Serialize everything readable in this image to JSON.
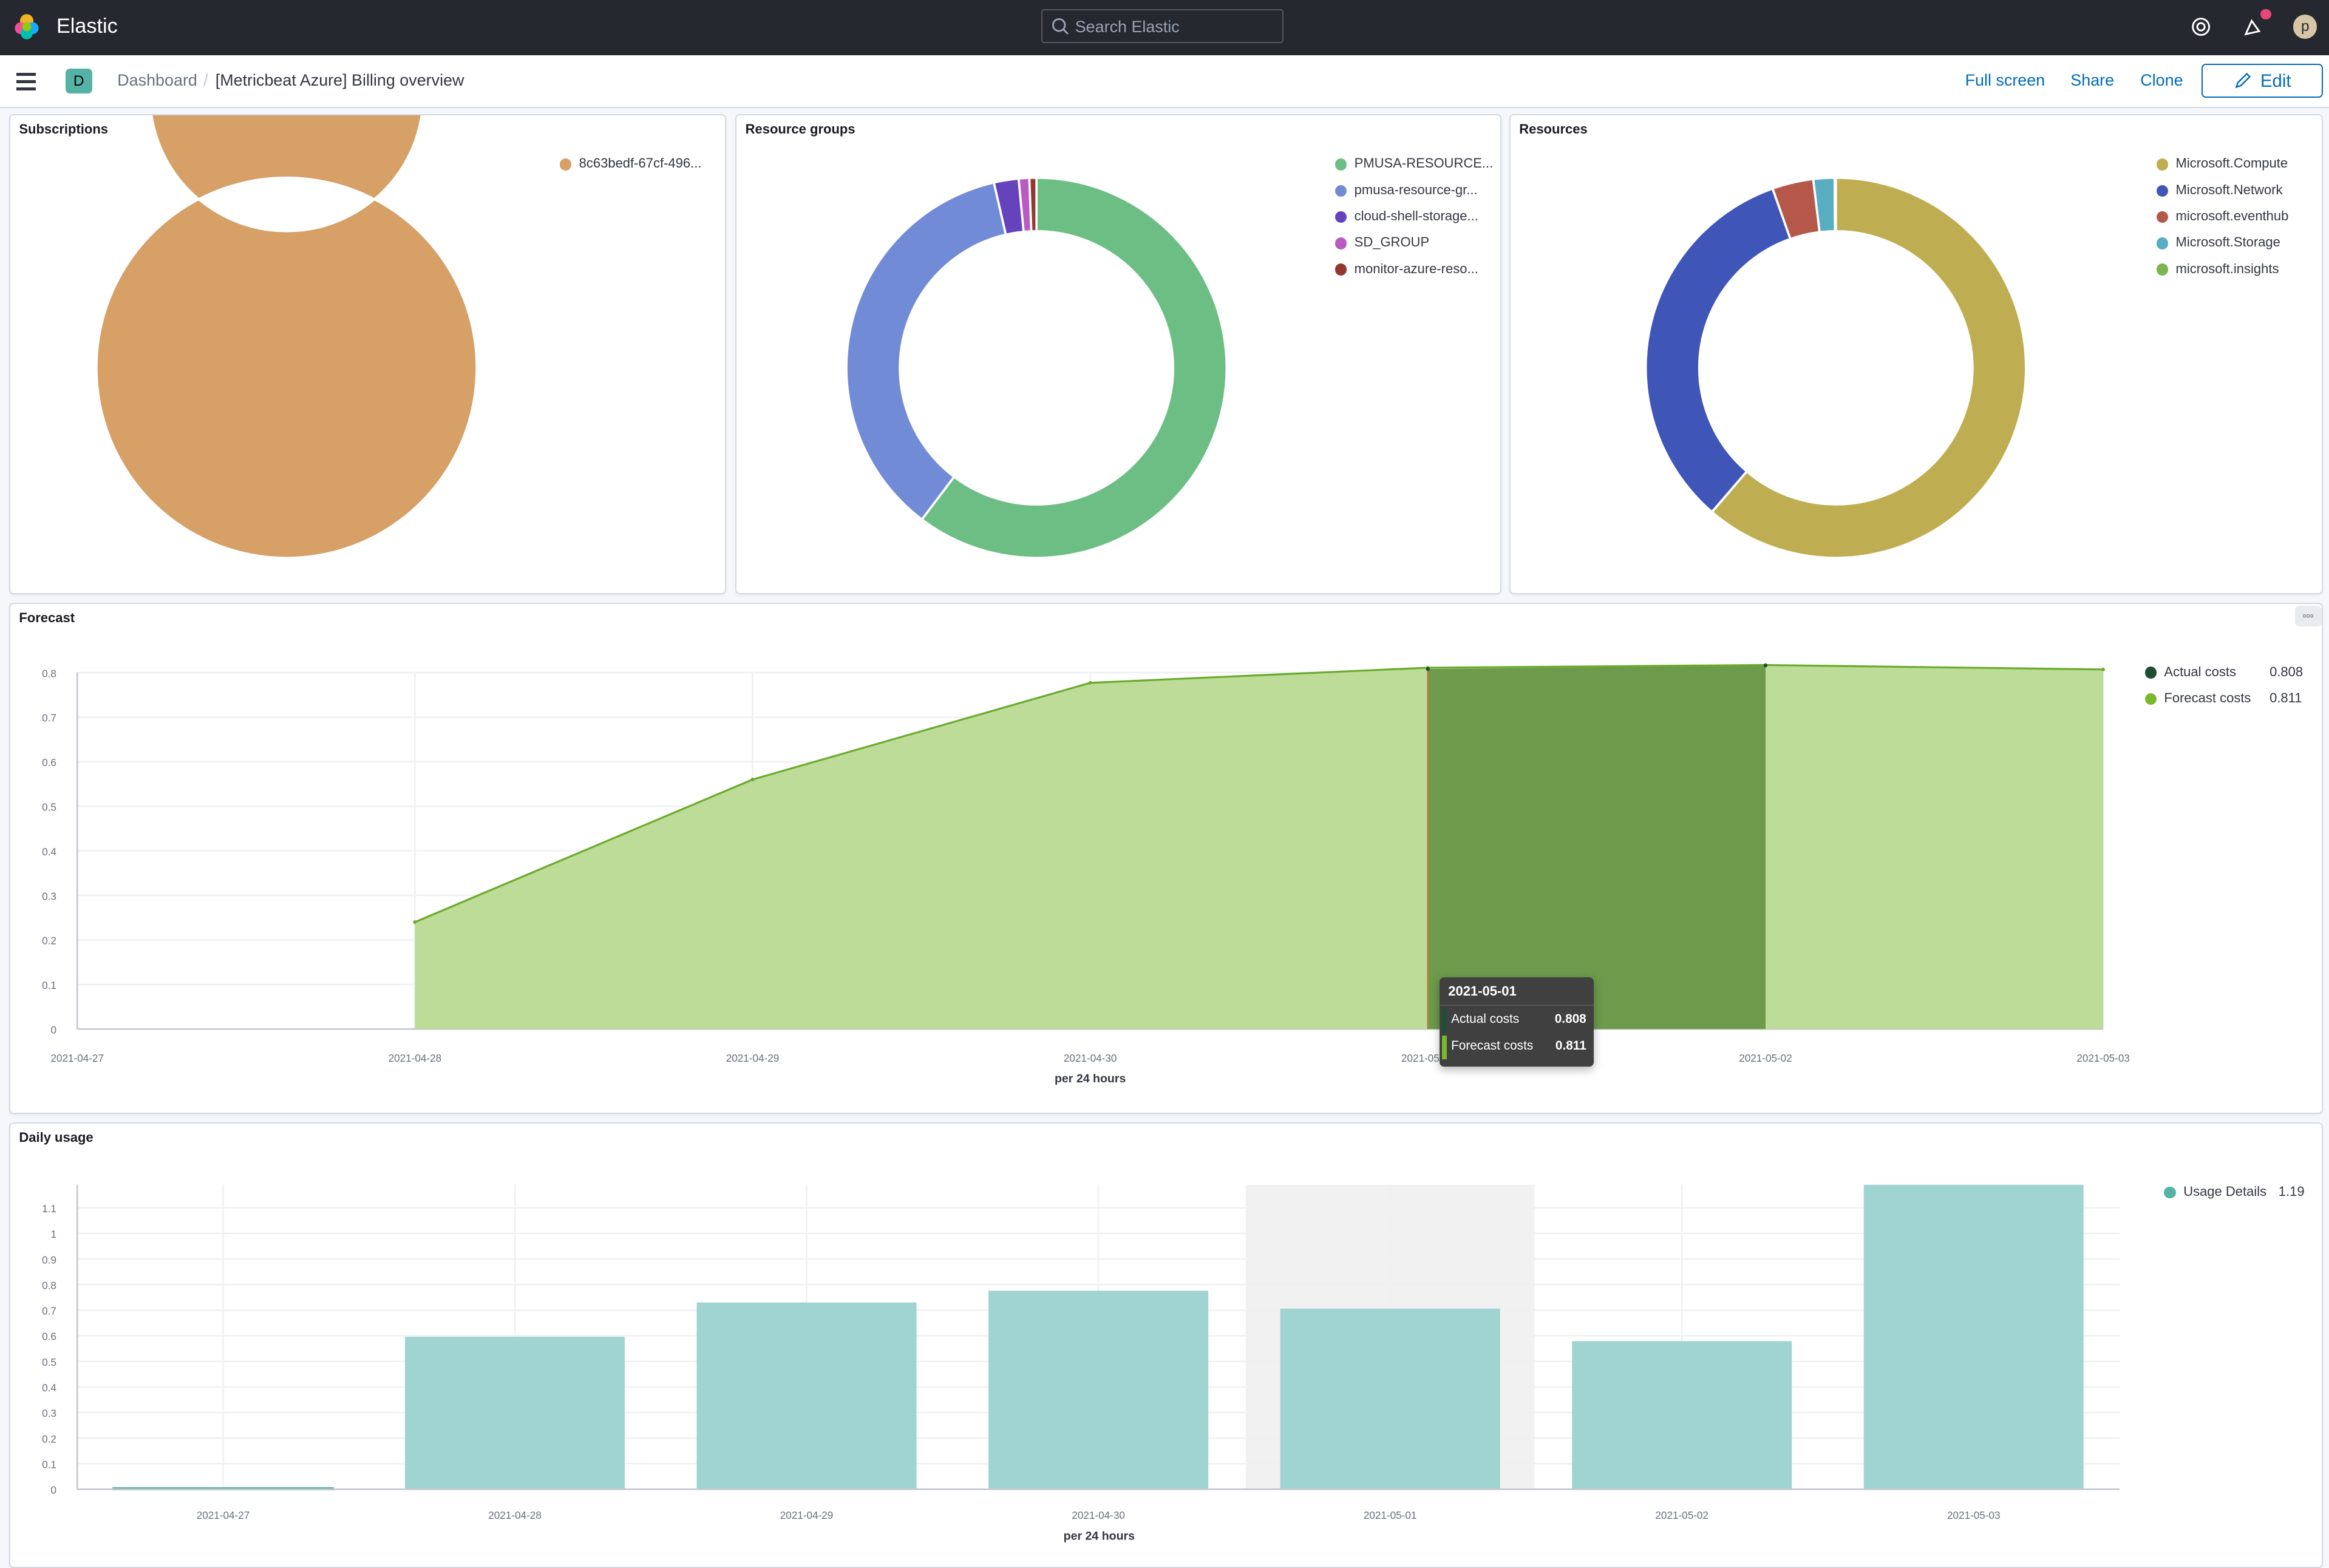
{
  "header": {
    "brand": "Elastic",
    "search_placeholder": "Search Elastic",
    "avatar_initial": "p"
  },
  "subheader": {
    "space_badge": "D",
    "breadcrumbs": [
      "Dashboard",
      "[Metricbeat Azure] Billing overview"
    ],
    "actions": {
      "full_screen": "Full screen",
      "share": "Share",
      "clone": "Clone",
      "edit": "Edit"
    }
  },
  "panels": {
    "subscriptions": {
      "title": "Subscriptions",
      "slices": [
        {
          "label": "8c63bedf-67cf-496...",
          "percent": 100,
          "color": "#d6a067"
        }
      ]
    },
    "resource_groups": {
      "title": "Resource groups",
      "slices": [
        {
          "label": "PMUSA-RESOURCE...",
          "percent": 60.3,
          "color": "#6dbe84"
        },
        {
          "label": "pmusa-resource-gr...",
          "percent": 36.1,
          "color": "#728bd6"
        },
        {
          "label": "cloud-shell-storage...",
          "percent": 2.1,
          "color": "#6443bd"
        },
        {
          "label": "SD_GROUP",
          "percent": 0.9,
          "color": "#b85cc2"
        },
        {
          "label": "monitor-azure-reso...",
          "percent": 0.6,
          "color": "#95372f"
        }
      ]
    },
    "resources": {
      "title": "Resources",
      "slices": [
        {
          "label": "Microsoft.Compute",
          "percent": 61.3,
          "color": "#bfae51"
        },
        {
          "label": "Microsoft.Network",
          "percent": 33.3,
          "color": "#3f56b8"
        },
        {
          "label": "microsoft.eventhub",
          "percent": 3.5,
          "color": "#b65849"
        },
        {
          "label": "Microsoft.Storage",
          "percent": 1.8,
          "color": "#59adc0"
        },
        {
          "label": "microsoft.insights",
          "percent": 0.1,
          "color": "#7ab54e"
        }
      ]
    },
    "forecast": {
      "title": "Forecast",
      "options_label": "▫▫▫"
    },
    "daily_usage": {
      "title": "Daily usage"
    }
  },
  "chart_data": [
    {
      "type": "area",
      "xlabel": "per 24 hours",
      "x": [
        "2021-04-27",
        "2021-04-28",
        "2021-04-29",
        "2021-04-30",
        "2021-05-01",
        "2021-05-02",
        "2021-05-03"
      ],
      "ylim": [
        0,
        0.8
      ],
      "yticks": [
        "0",
        "0.1",
        "0.2",
        "0.3",
        "0.4",
        "0.5",
        "0.6",
        "0.7",
        "0.8"
      ],
      "grid": true,
      "legend_position": "right",
      "series": [
        {
          "name": "Actual costs",
          "legend_value": "0.808",
          "color": "#1f4e35",
          "values": [
            null,
            null,
            null,
            null,
            0.808,
            0.816,
            null
          ]
        },
        {
          "name": "Forecast costs",
          "legend_value": "0.811",
          "color": "#7ab82e",
          "values": [
            null,
            0.24,
            0.56,
            0.777,
            0.811,
            0.817,
            0.807
          ]
        }
      ],
      "highlight_range": [
        "2021-05-01",
        "2021-05-02"
      ],
      "tooltip": {
        "title": "2021-05-01",
        "rows": [
          {
            "label": "Actual costs",
            "value": "0.808"
          },
          {
            "label": "Forecast costs",
            "value": "0.811"
          }
        ]
      }
    },
    {
      "type": "bar",
      "xlabel": "per 24 hours",
      "categories": [
        "2021-04-27",
        "2021-04-28",
        "2021-04-29",
        "2021-04-30",
        "2021-05-01",
        "2021-05-02",
        "2021-05-03"
      ],
      "ylim": [
        0,
        1.19
      ],
      "yticks": [
        "0",
        "0.1",
        "0.2",
        "0.3",
        "0.4",
        "0.5",
        "0.6",
        "0.7",
        "0.8",
        "0.9",
        "1",
        "1.1"
      ],
      "grid": true,
      "legend_position": "right",
      "series": [
        {
          "name": "Usage Details",
          "legend_value": "1.19",
          "color": "#54b3a4",
          "values": [
            0.005,
            0.596,
            0.73,
            0.776,
            0.706,
            0.579,
            1.19
          ]
        }
      ],
      "highlight_category": "2021-05-01"
    }
  ]
}
